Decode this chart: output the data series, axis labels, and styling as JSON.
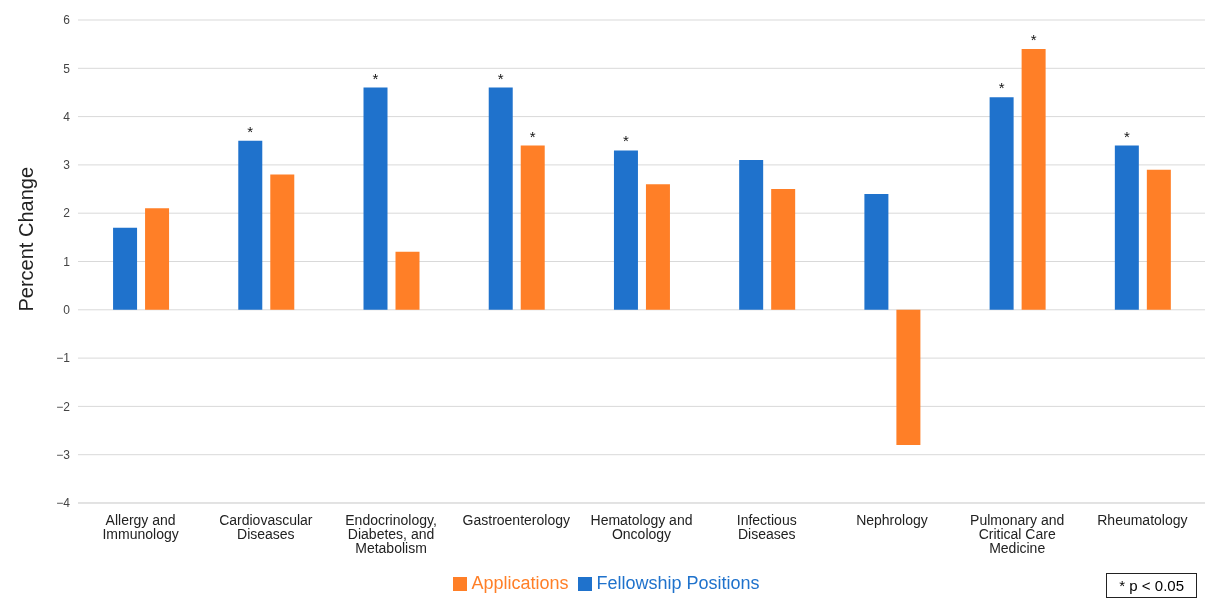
{
  "chart_data": {
    "type": "bar",
    "ylabel": "Percent Change",
    "categories": [
      "Allergy and Immunology",
      "Cardiovascular Diseases",
      "Endocrinology, Diabetes, and Metabolism",
      "Gastroenterology",
      "Hematology and Oncology",
      "Infectious Diseases",
      "Nephrology",
      "Pulmonary and Critical Care Medicine",
      "Rheumatology"
    ],
    "series": [
      {
        "name": "Fellowship Positions",
        "color": "#1f72cc",
        "values": [
          1.7,
          3.5,
          4.6,
          4.6,
          3.3,
          3.1,
          2.4,
          4.4,
          3.4
        ]
      },
      {
        "name": "Applications",
        "color": "#ff7f27",
        "values": [
          2.1,
          2.8,
          1.2,
          3.4,
          2.6,
          2.5,
          -2.8,
          5.4,
          2.9
        ]
      }
    ],
    "ylim": [
      -4,
      6
    ],
    "yticks": [
      {
        "value": -4,
        "label": "−4"
      },
      {
        "value": -3,
        "label": "−3"
      },
      {
        "value": -2,
        "label": "−2"
      },
      {
        "value": -1,
        "label": "−1"
      },
      0,
      1,
      2,
      3,
      4,
      5,
      6
    ],
    "grid": "y",
    "legend": "bottom",
    "annotations": [
      {
        "text": "*",
        "x": "Cardiovascular Diseases",
        "y": 3.5
      },
      {
        "text": "*",
        "x": "Endocrinology, Diabetes, and Metabolism",
        "y": 4.6
      },
      {
        "text": "*",
        "x": "Gastroenterology",
        "y": 4.6
      },
      {
        "text": "*",
        "x": "Gastroenterology",
        "y": 3.4
      },
      {
        "text": "*",
        "x": "Hematology and Oncology",
        "y": 3.3
      },
      {
        "text": "*",
        "x": "Pulmonary and Critical Care Medicine",
        "y": 4.4
      },
      {
        "text": "*",
        "x": "Pulmonary and Critical Care Medicine",
        "y": 5.4
      },
      {
        "text": "*",
        "x": "Rheumatology",
        "y": 3.4
      },
      "* p < 0.05"
    ]
  }
}
